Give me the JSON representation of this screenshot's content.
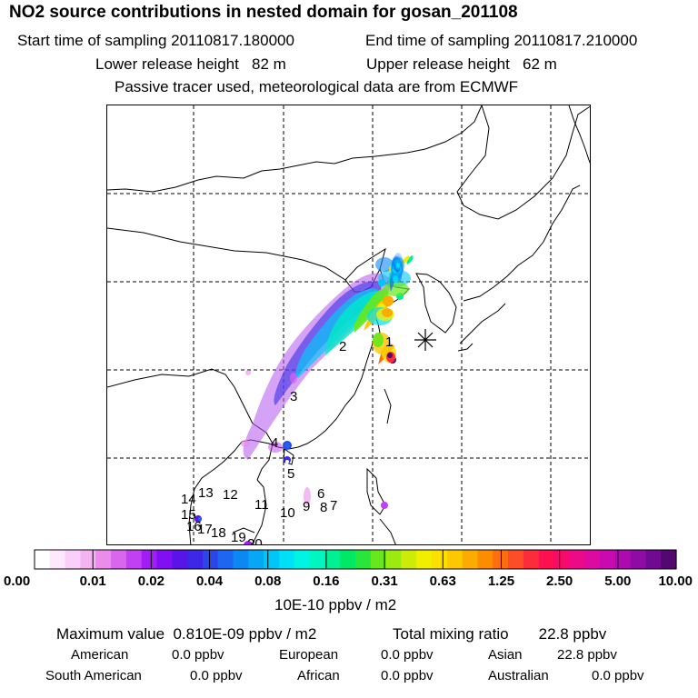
{
  "header": {
    "title": "NO2 source contributions in nested domain for gosan_201108",
    "start_label": "Start time of sampling 20110817.180000",
    "end_label": "End time of sampling 20110817.210000",
    "lower_label": "Lower release height   82 m",
    "upper_label": "Upper release height   62 m",
    "note": "Passive tracer used, meteorological data are from ECMWF"
  },
  "map": {
    "receptor_marker": "asterisk-icon",
    "source_labels": [
      "1",
      "2",
      "3",
      "4",
      "5",
      "6",
      "7",
      "8",
      "9",
      "10",
      "11",
      "12",
      "13",
      "14",
      "15",
      "16",
      "17",
      "18",
      "19",
      "20"
    ]
  },
  "chart_data": {
    "type": "heatmap",
    "title": "NO2 source contributions in nested domain for gosan_201108",
    "colorbar": {
      "ticks": [
        "0.00",
        "0.01",
        "0.02",
        "0.04",
        "0.08",
        "0.16",
        "0.31",
        "0.63",
        "1.25",
        "2.50",
        "5.00",
        "10.00"
      ],
      "unit": "10E-10 ppbv / m2",
      "colors": [
        "#ffffff",
        "#fde8fd",
        "#f9d0f9",
        "#f4b4f4",
        "#eb8ceb",
        "#d966ee",
        "#c040f2",
        "#a21cf6",
        "#8010f2",
        "#5a14ea",
        "#3c28e6",
        "#2a46ea",
        "#1c66f0",
        "#0c88f4",
        "#06a8f6",
        "#00c6f8",
        "#00e0f4",
        "#00f4e4",
        "#00f6c0",
        "#00f096",
        "#00e864",
        "#2ae63c",
        "#66e81c",
        "#9cea10",
        "#ccec08",
        "#f2ee00",
        "#fce000",
        "#fcc800",
        "#fcac00",
        "#fc8c00",
        "#fc6c10",
        "#fc4c28",
        "#fc2c3c",
        "#fc1050",
        "#f80a6c",
        "#ec0a88",
        "#dc0aa0",
        "#c80ab0",
        "#ae0ab2",
        "#900aa6",
        "#700a92",
        "#52086e"
      ]
    }
  },
  "stats": {
    "maximum": "Maximum value  0.810E-09 ppbv / m2",
    "total": "Total mixing ratio       22.8 ppbv"
  },
  "regions": {
    "american_label": "American",
    "american_value": "0.0 ppbv",
    "european_label": "European",
    "european_value": "0.0 ppbv",
    "asian_label": "Asian",
    "asian_value": "22.8 ppbv",
    "south_american_label": "South American",
    "south_american_value": "0.0 ppbv",
    "african_label": "African",
    "african_value": "0.0 ppbv",
    "australian_label": "Australian",
    "australian_value": "0.0 ppbv"
  }
}
